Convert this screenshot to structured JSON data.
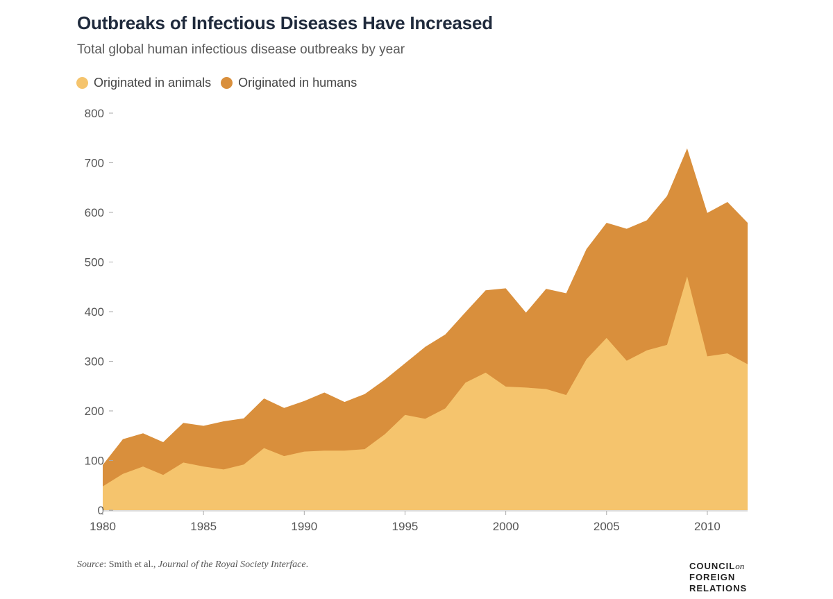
{
  "header": {
    "title": "Outbreaks of Infectious Diseases Have Increased",
    "subtitle": "Total global human infectious disease outbreaks by year"
  },
  "legend": [
    {
      "label": "Originated in animals",
      "color": "#f5c46d"
    },
    {
      "label": "Originated in humans",
      "color": "#d98f3c"
    }
  ],
  "footer": {
    "source_prefix": "Source",
    "source_sep": ": Smith et al., ",
    "source_journal": "Journal of the Royal Society Interface",
    "source_suffix": ".",
    "logo_line1": "COUNCIL",
    "logo_on": "on",
    "logo_line2": "FOREIGN",
    "logo_line3": "RELATIONS"
  },
  "chart_data": {
    "type": "area",
    "stacked": true,
    "title": "Outbreaks of Infectious Diseases Have Increased",
    "subtitle": "Total global human infectious disease outbreaks by year",
    "xlabel": "",
    "ylabel": "",
    "x": [
      1980,
      1981,
      1982,
      1983,
      1984,
      1985,
      1986,
      1987,
      1988,
      1989,
      1990,
      1991,
      1992,
      1993,
      1994,
      1995,
      1996,
      1997,
      1998,
      1999,
      2000,
      2001,
      2002,
      2003,
      2004,
      2005,
      2006,
      2007,
      2008,
      2009,
      2010,
      2011,
      2012
    ],
    "xticks": [
      1980,
      1985,
      1990,
      1995,
      2000,
      2005,
      2010
    ],
    "yticks": [
      0,
      100,
      200,
      300,
      400,
      500,
      600,
      700,
      800
    ],
    "xlim": [
      1980,
      2012
    ],
    "ylim": [
      0,
      800
    ],
    "grid": false,
    "legend_position": "top-left",
    "series": [
      {
        "name": "Originated in animals",
        "color": "#f5c46d",
        "values": [
          48,
          73,
          88,
          71,
          96,
          88,
          82,
          92,
          125,
          109,
          118,
          120,
          120,
          123,
          153,
          192,
          184,
          205,
          257,
          277,
          249,
          247,
          244,
          232,
          304,
          347,
          301,
          322,
          333,
          471,
          310,
          316,
          294
        ]
      },
      {
        "name": "Originated in humans",
        "color": "#d98f3c",
        "values": [
          43,
          70,
          67,
          66,
          80,
          82,
          97,
          93,
          100,
          97,
          102,
          117,
          98,
          111,
          110,
          104,
          145,
          149,
          142,
          166,
          198,
          151,
          202,
          205,
          222,
          232,
          266,
          262,
          300,
          258,
          289,
          305,
          285
        ]
      }
    ]
  }
}
